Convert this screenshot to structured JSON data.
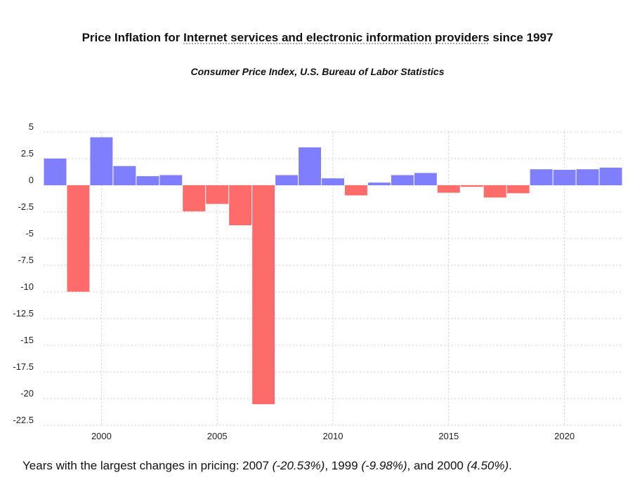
{
  "header": {
    "title_prefix": "Price Inflation for ",
    "title_link": "Internet services and electronic information providers",
    "title_suffix": " since 1997",
    "subtitle": "Consumer Price Index, U.S. Bureau of Labor Statistics"
  },
  "summary": {
    "lead": "Years with the largest changes in pricing: ",
    "y1": "2007",
    "v1": "(-20.53%)",
    "y2": "1999",
    "v2": "(-9.98%)",
    "sep2": ", and ",
    "y3": "2000",
    "v3": "(4.50%)",
    "end": "."
  },
  "colors": {
    "positive": "#7f7ffe",
    "negative": "#fe6b6b",
    "grid": "#cccccc"
  },
  "chart_data": {
    "type": "bar",
    "title": "Price Inflation for Internet services and electronic information providers since 1997",
    "subtitle": "Consumer Price Index, U.S. Bureau of Labor Statistics",
    "x": [
      1998,
      1999,
      2000,
      2001,
      2002,
      2003,
      2004,
      2005,
      2006,
      2007,
      2008,
      2009,
      2010,
      2011,
      2012,
      2013,
      2014,
      2015,
      2016,
      2017,
      2018,
      2019,
      2020,
      2021,
      2022
    ],
    "values": [
      2.5,
      -9.98,
      4.5,
      1.8,
      0.85,
      0.95,
      -2.45,
      -1.75,
      -3.75,
      -20.53,
      0.95,
      3.55,
      0.65,
      -0.95,
      0.25,
      0.95,
      1.15,
      -0.7,
      -0.15,
      -1.15,
      -0.75,
      1.5,
      1.45,
      1.5,
      1.65
    ],
    "x_ticks": [
      2000,
      2005,
      2010,
      2015,
      2020
    ],
    "y_ticks": [
      5,
      2.5,
      0,
      -2.5,
      -5,
      -7.5,
      -10,
      -12.5,
      -15,
      -17.5,
      -20,
      -22.5
    ],
    "y_tick_labels": [
      "5",
      "2.5",
      "0",
      "-2.5",
      "-5",
      "-7.5",
      "-10",
      "-12.5",
      "-15",
      "-17.5",
      "-20",
      "-22.5"
    ],
    "ylim": [
      -22.5,
      5
    ],
    "xlabel": "",
    "ylabel": "",
    "grid": true
  }
}
